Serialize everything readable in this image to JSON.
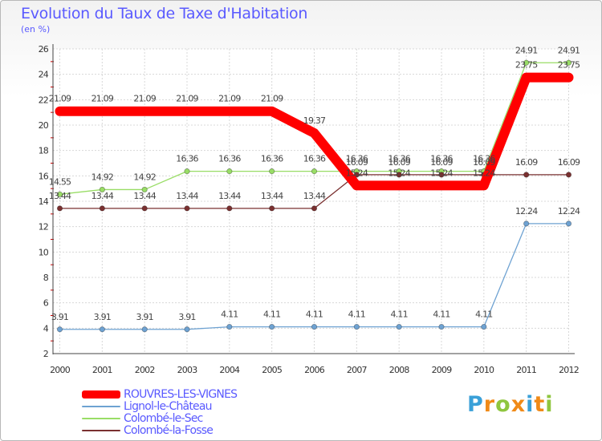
{
  "title": "Evolution du Taux de Taxe d'Habitation",
  "unit": "(en %)",
  "logo": {
    "letters": [
      "P",
      "r",
      "o",
      "x",
      "i",
      "t",
      "i"
    ]
  },
  "chart_data": {
    "type": "line",
    "title": "Evolution du Taux de Taxe d'Habitation",
    "ylabel": "(en %)",
    "xlabel": "",
    "categories": [
      "2000",
      "2001",
      "2002",
      "2003",
      "2004",
      "2005",
      "2006",
      "2007",
      "2008",
      "2009",
      "2010",
      "2011",
      "2012"
    ],
    "ylim": [
      2,
      26
    ],
    "yticks": [
      2,
      4,
      6,
      8,
      10,
      12,
      14,
      16,
      18,
      20,
      22,
      24,
      26
    ],
    "grid": true,
    "legend_position": "bottom-left",
    "series": [
      {
        "name": "ROUVRES-LES-VIGNES",
        "color": "#ff0000",
        "emphasis": true,
        "values": [
          21.09,
          21.09,
          21.09,
          21.09,
          21.09,
          21.09,
          19.37,
          15.24,
          15.24,
          15.24,
          15.24,
          23.75,
          23.75
        ],
        "labels": [
          "21.09",
          "21.09",
          "21.09",
          "21.09",
          "21.09",
          "21.09",
          "19.37",
          "15.24",
          "15.24",
          "15.24",
          "15.24",
          "23.75",
          "23.75"
        ]
      },
      {
        "name": "Lignol-le-Château",
        "color": "#6ea2d2",
        "emphasis": false,
        "values": [
          3.91,
          3.91,
          3.91,
          3.91,
          4.11,
          4.11,
          4.11,
          4.11,
          4.11,
          4.11,
          4.11,
          12.24,
          12.24
        ],
        "labels": [
          "3.91",
          "3.91",
          "3.91",
          "3.91",
          "4.11",
          "4.11",
          "4.11",
          "4.11",
          "4.11",
          "4.11",
          "4.11",
          "12.24",
          "12.24"
        ]
      },
      {
        "name": "Colombé-le-Sec",
        "color": "#99dd66",
        "emphasis": false,
        "values": [
          14.55,
          14.92,
          14.92,
          16.36,
          16.36,
          16.36,
          16.36,
          16.36,
          16.36,
          16.36,
          16.36,
          24.91,
          24.91
        ],
        "labels": [
          "14.55",
          "14.92",
          "14.92",
          "16.36",
          "16.36",
          "16.36",
          "16.36",
          "16.36",
          "16.36",
          "16.36",
          "16.36",
          "24.91",
          "24.91"
        ]
      },
      {
        "name": "Colombé-la-Fosse",
        "color": "#7a3030",
        "emphasis": false,
        "values": [
          13.44,
          13.44,
          13.44,
          13.44,
          13.44,
          13.44,
          13.44,
          16.09,
          16.09,
          16.09,
          16.09,
          16.09,
          16.09
        ],
        "labels": [
          "13.44",
          "13.44",
          "13.44",
          "13.44",
          "13.44",
          "13.44",
          "13.44",
          "16.09",
          "16.09",
          "16.09",
          "16.09",
          "16.09",
          "16.09"
        ]
      }
    ]
  }
}
